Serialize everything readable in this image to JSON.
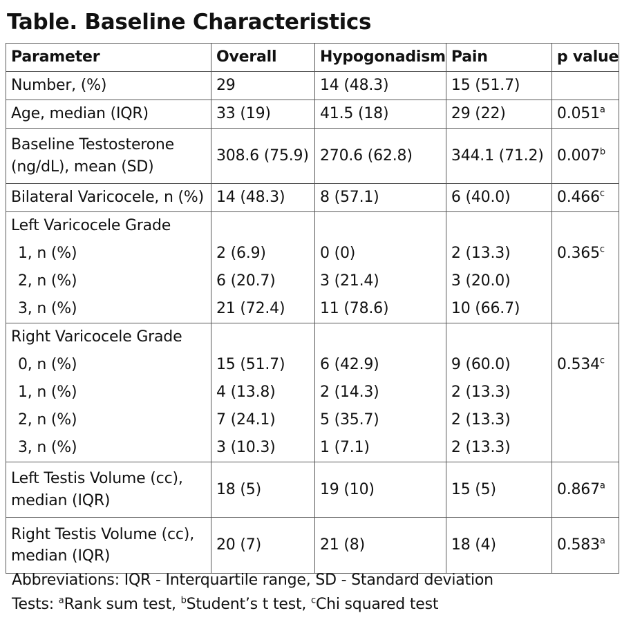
{
  "title": "Table. Baseline Characteristics",
  "headers": [
    "Parameter",
    "Overall",
    "Hypogonadism",
    "Pain",
    "p value"
  ],
  "rows": [
    {
      "parameter": [
        "Number, (%)"
      ],
      "overall": [
        "29"
      ],
      "hypogonadism": [
        "14 (48.3)"
      ],
      "pain": [
        "15 (51.7)"
      ],
      "p": "",
      "sup": ""
    },
    {
      "parameter": [
        "Age, median (IQR)"
      ],
      "overall": [
        "33 (19)"
      ],
      "hypogonadism": [
        "41.5 (18)"
      ],
      "pain": [
        "29 (22)"
      ],
      "p": "0.051",
      "sup": "a"
    },
    {
      "parameter": [
        "Baseline Testosterone",
        "(ng/dL), mean (SD)"
      ],
      "overall": [
        "308.6 (75.9)"
      ],
      "hypogonadism": [
        "270.6 (62.8)"
      ],
      "pain": [
        "344.1 (71.2)"
      ],
      "p": "0.007",
      "sup": "b"
    },
    {
      "parameter": [
        "Bilateral Varicocele, n (%)"
      ],
      "overall": [
        "14 (48.3)"
      ],
      "hypogonadism": [
        "8 (57.1)"
      ],
      "pain": [
        "6 (40.0)"
      ],
      "p": "0.466",
      "sup": "c"
    },
    {
      "parameter": [
        "Left Varicocele Grade",
        "1, n (%)",
        "2, n (%)",
        "3, n (%)"
      ],
      "overall": [
        "",
        "2 (6.9)",
        "6 (20.7)",
        "21 (72.4)"
      ],
      "hypogonadism": [
        "",
        "0 (0)",
        "3 (21.4)",
        "11 (78.6)"
      ],
      "pain": [
        "",
        "2 (13.3)",
        "3 (20.0)",
        "10 (66.7)"
      ],
      "p": "0.365",
      "sup": "c"
    },
    {
      "parameter": [
        "Right Varicocele Grade",
        "0, n (%)",
        "1, n (%)",
        "2, n (%)",
        "3, n (%)"
      ],
      "overall": [
        "",
        "15 (51.7)",
        "4 (13.8)",
        "7 (24.1)",
        "3 (10.3)"
      ],
      "hypogonadism": [
        "",
        "6 (42.9)",
        "2 (14.3)",
        "5 (35.7)",
        "1 (7.1)"
      ],
      "pain": [
        "",
        "9 (60.0)",
        "2 (13.3)",
        "2 (13.3)",
        "2 (13.3)"
      ],
      "p": "0.534",
      "sup": "c"
    },
    {
      "parameter": [
        "Left Testis Volume (cc),",
        "median (IQR)"
      ],
      "overall": [
        "18 (5)"
      ],
      "hypogonadism": [
        "19 (10)"
      ],
      "pain": [
        "15 (5)"
      ],
      "p": "0.867",
      "sup": "a"
    },
    {
      "parameter": [
        "Right Testis Volume (cc),",
        "median (IQR)"
      ],
      "overall": [
        "20 (7)"
      ],
      "hypogonadism": [
        "21 (8)"
      ],
      "pain": [
        "18 (4)"
      ],
      "p": "0.583",
      "sup": "a"
    }
  ],
  "footnotes": {
    "abbreviations": "Abbreviations: IQR - Interquartile range, SD - Standard deviation",
    "tests_prefix": "Tests: ",
    "tests": [
      {
        "sup": "a",
        "text": "Rank sum test, "
      },
      {
        "sup": "b",
        "text": "Student’s t test, "
      },
      {
        "sup": "c",
        "text": "Chi squared test"
      }
    ]
  }
}
